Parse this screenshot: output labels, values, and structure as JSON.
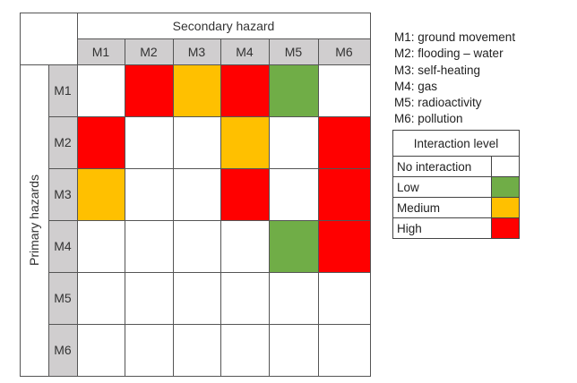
{
  "matrix": {
    "column_title": "Secondary hazard",
    "row_title": "Primary hazards",
    "columns": [
      "M1",
      "M2",
      "M3",
      "M4",
      "M5",
      "M6"
    ],
    "rows": [
      "M1",
      "M2",
      "M3",
      "M4",
      "M5",
      "M6"
    ],
    "levels": [
      [
        "none",
        "high",
        "medium",
        "high",
        "low",
        "none"
      ],
      [
        "high",
        "none",
        "none",
        "medium",
        "none",
        "high"
      ],
      [
        "medium",
        "none",
        "none",
        "high",
        "none",
        "high"
      ],
      [
        "none",
        "none",
        "none",
        "none",
        "low",
        "high"
      ],
      [
        "none",
        "none",
        "none",
        "none",
        "none",
        "none"
      ],
      [
        "none",
        "none",
        "none",
        "none",
        "none",
        "none"
      ]
    ]
  },
  "definitions": [
    "M1: ground movement",
    "M2: flooding – water",
    "M3: self-heating",
    "M4: gas",
    "M5: radioactivity",
    "M6: pollution"
  ],
  "legend": {
    "title": "Interaction level",
    "items": [
      {
        "key": "none",
        "label": "No interaction",
        "color": "#ffffff"
      },
      {
        "key": "low",
        "label": "Low",
        "color": "#70ad47"
      },
      {
        "key": "medium",
        "label": "Medium",
        "color": "#ffc000"
      },
      {
        "key": "high",
        "label": "High",
        "color": "#ff0000"
      }
    ]
  },
  "colors": {
    "none": "#ffffff",
    "low": "#70ad47",
    "medium": "#ffc000",
    "high": "#ff0000",
    "header_bg": "#d0cecf"
  }
}
